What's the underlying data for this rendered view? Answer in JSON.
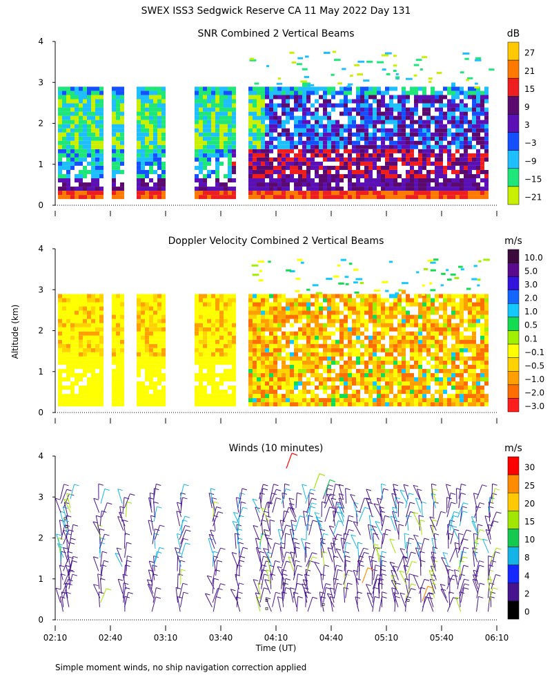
{
  "figure": {
    "title": "SWEX ISS3 Sedgwick Reserve CA  11 May 2022 Day 131",
    "y_axis_label": "Altitude (km)",
    "x_axis_label": "Time (UT)",
    "footnote": "Simple moment winds, no ship navigation correction applied"
  },
  "chart_data": [
    {
      "type": "heatmap",
      "title": "SNR Combined 2 Vertical Beams",
      "ylim": [
        0,
        4
      ],
      "y_ticks": [
        "0",
        "1",
        "2",
        "3",
        "4"
      ],
      "x_ticks": [
        "02:10",
        "02:40",
        "03:10",
        "03:40",
        "04:10",
        "04:40",
        "05:10",
        "05:40",
        "06:10"
      ],
      "colorbar": {
        "unit": "dB",
        "labels": [
          "27",
          "21",
          "15",
          "9",
          "3",
          "−3",
          "−9",
          "−15",
          "−21"
        ],
        "colors": [
          "#ffc800",
          "#ff7800",
          "#ee1e1e",
          "#5a0a6e",
          "#5a10b4",
          "#1450ff",
          "#1ebeff",
          "#1ee678",
          "#c8f000"
        ]
      }
    },
    {
      "type": "heatmap",
      "title": "Doppler Velocity Combined 2 Vertical Beams",
      "ylim": [
        0,
        4
      ],
      "y_ticks": [
        "0",
        "1",
        "2",
        "3",
        "4"
      ],
      "x_ticks": [
        "02:10",
        "02:40",
        "03:10",
        "03:40",
        "04:10",
        "04:40",
        "05:10",
        "05:40",
        "06:10"
      ],
      "colorbar": {
        "unit": "m/s",
        "labels": [
          "10.0",
          "5.0",
          "3.0",
          "2.0",
          "1.0",
          "0.5",
          "0.1",
          "−0.1",
          "−0.5",
          "−1.0",
          "−2.0",
          "−3.0"
        ],
        "colors": [
          "#3c0a3c",
          "#5a0a8c",
          "#3214dc",
          "#1464ff",
          "#14c8ff",
          "#14dc50",
          "#a0f000",
          "#ffff00",
          "#ffd200",
          "#ffa000",
          "#ff6e00",
          "#ff1e1e"
        ]
      }
    },
    {
      "type": "scatter",
      "title": "Winds (10 minutes)",
      "ylim": [
        0,
        4
      ],
      "y_ticks": [
        "0",
        "1",
        "2",
        "3",
        "4"
      ],
      "x_ticks": [
        "02:10",
        "02:40",
        "03:10",
        "03:40",
        "04:10",
        "04:40",
        "05:10",
        "05:40",
        "06:10"
      ],
      "colorbar": {
        "unit": "m/s",
        "labels": [
          "30",
          "25",
          "20",
          "15",
          "10",
          "8",
          "4",
          "2",
          "0"
        ],
        "colors": [
          "#ff0000",
          "#ff8c00",
          "#ffc800",
          "#a0e600",
          "#14c850",
          "#14b4e6",
          "#1428ff",
          "#46148c",
          "#000000"
        ]
      }
    }
  ]
}
